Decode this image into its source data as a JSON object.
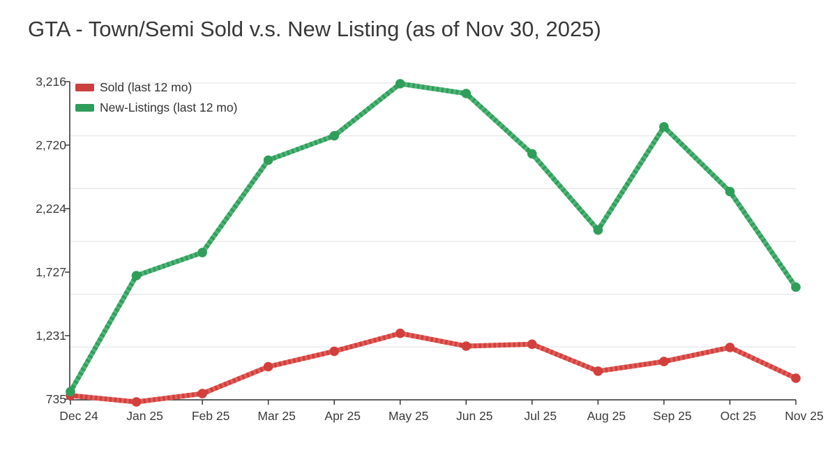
{
  "title": "GTA - Town/Semi Sold v.s. New Listing (as of Nov 30, 2025)",
  "legend": {
    "items": [
      {
        "label": "Sold (last 12 mo)"
      },
      {
        "label": "New-Listings (last 12 mo)"
      }
    ]
  },
  "chart_data": {
    "type": "line",
    "title": "GTA - Town/Semi Sold v.s. New Listing (as of Nov 30, 2025)",
    "categories": [
      "Dec 24",
      "Jan 25",
      "Feb 25",
      "Mar 25",
      "Apr 25",
      "May 25",
      "Jun 25",
      "Jul 25",
      "Aug 25",
      "Sep 25",
      "Oct 25",
      "Nov 25"
    ],
    "series": [
      {
        "name": "Sold (last 12 mo)",
        "color_base": "#e0605c",
        "color_dark": "#d23f3c",
        "color_legend": "#cb403e",
        "values": [
          785,
          735,
          800,
          1010,
          1130,
          1270,
          1170,
          1185,
          975,
          1050,
          1160,
          920
        ]
      },
      {
        "name": "New-Listings (last 12 mo)",
        "color_base": "#53b57b",
        "color_dark": "#2f9e5a",
        "color_legend": "#2d9e59",
        "values": [
          815,
          1720,
          1900,
          2620,
          2810,
          3216,
          3140,
          2670,
          2075,
          2880,
          2375,
          1630
        ]
      }
    ],
    "yticks": {
      "values": [
        735,
        1231,
        1727,
        2224,
        2720,
        3216
      ],
      "labels": [
        "735",
        "1,231",
        "1,727",
        "2,224",
        "2,720",
        "3,216"
      ]
    },
    "ylim": [
      735,
      3216
    ],
    "xlabel": "",
    "ylabel": "",
    "grid": true,
    "legend_position": "top-left"
  }
}
